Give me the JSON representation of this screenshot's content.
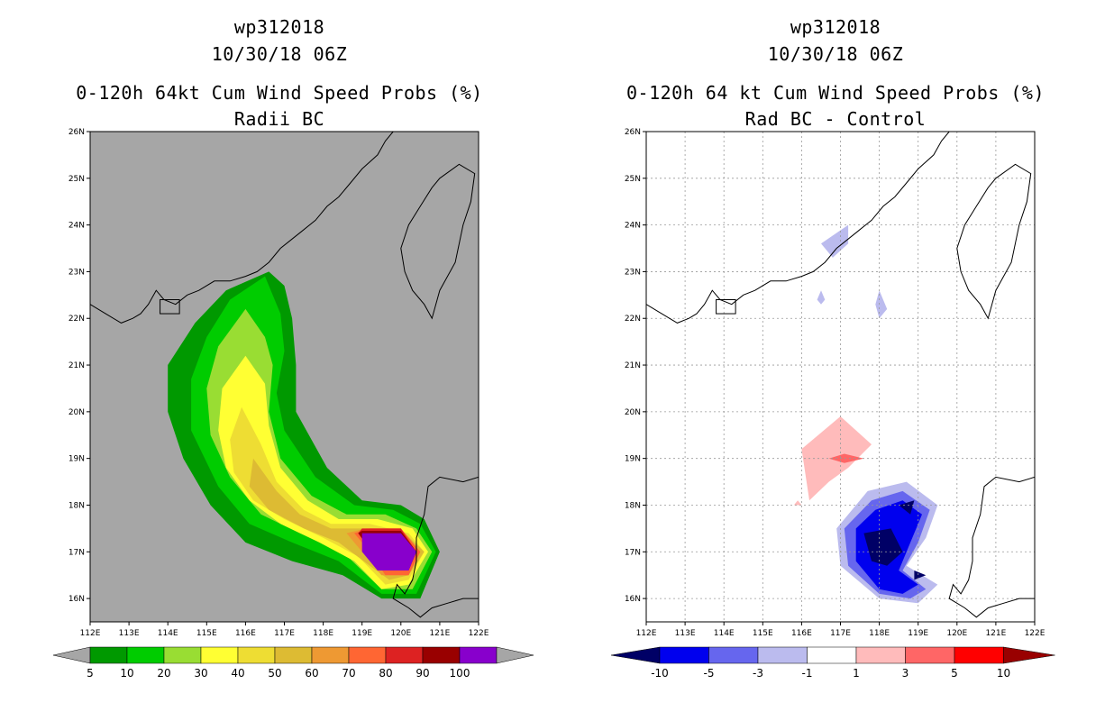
{
  "chart_data": [
    {
      "type": "heatmap",
      "title": [
        "wp312018",
        "10/30/18 06Z",
        "0-120h 64kt Cum Wind Speed Probs (%)",
        "Radii BC"
      ],
      "x_ticks": [
        "112E",
        "113E",
        "114E",
        "115E",
        "116E",
        "117E",
        "118E",
        "119E",
        "120E",
        "121E",
        "122E"
      ],
      "y_ticks": [
        "16N",
        "17N",
        "18N",
        "19N",
        "20N",
        "21N",
        "22N",
        "23N",
        "24N",
        "25N",
        "26N"
      ],
      "xlim": [
        112,
        122
      ],
      "ylim": [
        15.5,
        26
      ],
      "grid": false,
      "legend": {
        "position": "bottom",
        "labels": [
          "5",
          "10",
          "20",
          "30",
          "40",
          "50",
          "60",
          "70",
          "80",
          "90",
          "100"
        ],
        "colors": [
          "#009900",
          "#00cc00",
          "#99dd33",
          "#ffff33",
          "#eedd33",
          "#ddbb33",
          "#ee9933",
          "#ff6633",
          "#dd2222",
          "#990000",
          "#8800cc"
        ]
      },
      "contours": [
        {
          "level": 5,
          "color": "#009900",
          "points": [
            [
              116.6,
              23.0
            ],
            [
              115.5,
              22.6
            ],
            [
              114.7,
              21.9
            ],
            [
              114.0,
              21.0
            ],
            [
              114.0,
              20.0
            ],
            [
              114.4,
              19.0
            ],
            [
              115.1,
              18.0
            ],
            [
              116.0,
              17.2
            ],
            [
              117.2,
              16.8
            ],
            [
              118.5,
              16.5
            ],
            [
              119.5,
              16.0
            ],
            [
              120.5,
              16.0
            ],
            [
              121.0,
              17.0
            ],
            [
              120.6,
              17.7
            ],
            [
              120.0,
              18.0
            ],
            [
              119.0,
              18.1
            ],
            [
              118.1,
              18.8
            ],
            [
              117.3,
              20.0
            ],
            [
              117.3,
              21.0
            ],
            [
              117.2,
              22.0
            ],
            [
              117.0,
              22.7
            ]
          ]
        },
        {
          "level": 10,
          "color": "#00cc00",
          "points": [
            [
              116.5,
              22.9
            ],
            [
              115.6,
              22.4
            ],
            [
              115.0,
              21.6
            ],
            [
              114.6,
              20.7
            ],
            [
              114.6,
              19.6
            ],
            [
              115.3,
              18.4
            ],
            [
              116.1,
              17.6
            ],
            [
              117.2,
              17.2
            ],
            [
              118.4,
              16.8
            ],
            [
              119.5,
              16.1
            ],
            [
              120.4,
              16.1
            ],
            [
              120.9,
              17.0
            ],
            [
              120.5,
              17.6
            ],
            [
              119.8,
              17.9
            ],
            [
              118.8,
              18.0
            ],
            [
              117.8,
              18.6
            ],
            [
              117.0,
              19.6
            ],
            [
              116.8,
              20.4
            ],
            [
              117.0,
              21.3
            ],
            [
              116.9,
              22.1
            ]
          ]
        },
        {
          "level": 20,
          "color": "#99dd33",
          "points": [
            [
              116.0,
              22.2
            ],
            [
              115.3,
              21.4
            ],
            [
              115.0,
              20.5
            ],
            [
              115.1,
              19.5
            ],
            [
              115.6,
              18.6
            ],
            [
              116.4,
              17.8
            ],
            [
              117.4,
              17.4
            ],
            [
              118.5,
              17.0
            ],
            [
              119.5,
              16.2
            ],
            [
              120.3,
              16.2
            ],
            [
              120.8,
              17.0
            ],
            [
              120.4,
              17.5
            ],
            [
              119.6,
              17.8
            ],
            [
              118.6,
              17.8
            ],
            [
              117.7,
              18.2
            ],
            [
              116.9,
              19.0
            ],
            [
              116.6,
              20.0
            ],
            [
              116.7,
              21.0
            ],
            [
              116.5,
              21.6
            ]
          ]
        },
        {
          "level": 30,
          "color": "#ffff33",
          "points": [
            [
              116.0,
              21.2
            ],
            [
              115.4,
              20.5
            ],
            [
              115.3,
              19.6
            ],
            [
              115.5,
              18.8
            ],
            [
              116.1,
              18.1
            ],
            [
              116.9,
              17.6
            ],
            [
              117.9,
              17.2
            ],
            [
              118.8,
              16.8
            ],
            [
              119.5,
              16.2
            ],
            [
              120.2,
              16.3
            ],
            [
              120.7,
              17.0
            ],
            [
              120.3,
              17.5
            ],
            [
              119.4,
              17.7
            ],
            [
              118.4,
              17.7
            ],
            [
              117.6,
              18.1
            ],
            [
              116.9,
              18.8
            ],
            [
              116.6,
              19.7
            ],
            [
              116.5,
              20.6
            ]
          ]
        },
        {
          "level": 40,
          "color": "#eedd33",
          "points": [
            [
              115.9,
              20.1
            ],
            [
              115.6,
              19.4
            ],
            [
              115.7,
              18.7
            ],
            [
              116.2,
              18.1
            ],
            [
              117.0,
              17.7
            ],
            [
              118.0,
              17.3
            ],
            [
              118.9,
              16.9
            ],
            [
              119.6,
              16.3
            ],
            [
              120.2,
              16.4
            ],
            [
              120.6,
              17.0
            ],
            [
              120.2,
              17.4
            ],
            [
              119.2,
              17.6
            ],
            [
              118.2,
              17.6
            ],
            [
              117.5,
              17.9
            ],
            [
              116.8,
              18.5
            ],
            [
              116.4,
              19.3
            ]
          ]
        },
        {
          "level": 50,
          "color": "#ddbb33",
          "points": [
            [
              116.2,
              19.0
            ],
            [
              116.1,
              18.4
            ],
            [
              116.6,
              17.9
            ],
            [
              117.5,
              17.5
            ],
            [
              118.4,
              17.2
            ],
            [
              119.2,
              16.7
            ],
            [
              119.7,
              16.4
            ],
            [
              120.2,
              16.5
            ],
            [
              120.6,
              17.0
            ],
            [
              120.1,
              17.4
            ],
            [
              119.0,
              17.5
            ],
            [
              118.2,
              17.5
            ],
            [
              117.4,
              17.8
            ],
            [
              116.8,
              18.3
            ]
          ]
        },
        {
          "level": 60,
          "color": "#ee9933",
          "points": [
            [
              118.6,
              17.4
            ],
            [
              119.0,
              17.0
            ],
            [
              119.5,
              16.5
            ],
            [
              120.2,
              16.5
            ],
            [
              120.5,
              17.0
            ],
            [
              120.0,
              17.5
            ],
            [
              119.1,
              17.5
            ]
          ]
        },
        {
          "level": 70,
          "color": "#ff6633",
          "points": [
            [
              118.8,
              17.4
            ],
            [
              119.2,
              17.0
            ],
            [
              119.6,
              16.5
            ],
            [
              120.2,
              16.5
            ],
            [
              120.5,
              17.0
            ],
            [
              120.0,
              17.5
            ],
            [
              119.2,
              17.5
            ]
          ]
        },
        {
          "level": 80,
          "color": "#dd2222",
          "points": [
            [
              118.9,
              17.4
            ],
            [
              119.6,
              16.6
            ],
            [
              120.2,
              16.6
            ],
            [
              120.4,
              17.0
            ],
            [
              120.0,
              17.5
            ],
            [
              119.0,
              17.5
            ]
          ]
        },
        {
          "level": 90,
          "color": "#990000",
          "points": [
            [
              118.9,
              17.4
            ],
            [
              119.6,
              16.6
            ],
            [
              120.2,
              16.6
            ],
            [
              120.4,
              17.0
            ],
            [
              120.0,
              17.45
            ],
            [
              119.0,
              17.45
            ]
          ]
        },
        {
          "level": 100,
          "color": "#8800cc",
          "points": [
            [
              119.0,
              17.4
            ],
            [
              119.0,
              17.0
            ],
            [
              119.4,
              16.6
            ],
            [
              120.2,
              16.6
            ],
            [
              120.4,
              17.0
            ],
            [
              120.0,
              17.4
            ]
          ]
        }
      ]
    },
    {
      "type": "heatmap",
      "title": [
        "wp312018",
        "10/30/18 06Z",
        "0-120h 64 kt Cum Wind Speed Probs (%)",
        "Rad BC - Control"
      ],
      "x_ticks": [
        "112E",
        "113E",
        "114E",
        "115E",
        "116E",
        "117E",
        "118E",
        "119E",
        "120E",
        "121E",
        "122E"
      ],
      "y_ticks": [
        "16N",
        "17N",
        "18N",
        "19N",
        "20N",
        "21N",
        "22N",
        "23N",
        "24N",
        "25N",
        "26N"
      ],
      "xlim": [
        112,
        122
      ],
      "ylim": [
        15.5,
        26
      ],
      "grid": true,
      "legend": {
        "position": "bottom",
        "labels": [
          "-10",
          "-5",
          "-3",
          "-1",
          "1",
          "3",
          "5",
          "10"
        ],
        "colors": [
          "#000066",
          "#0000ee",
          "#6666ee",
          "#bbbbee",
          "#ffffff",
          "#ffbbbb",
          "#ff6666",
          "#ff0000",
          "#990000"
        ]
      },
      "contours": [
        {
          "level": "-1 to -3",
          "color": "#bbbbee",
          "points": [
            [
              116.5,
              23.6
            ],
            [
              117.2,
              24.0
            ],
            [
              117.2,
              23.6
            ],
            [
              116.8,
              23.3
            ]
          ]
        },
        {
          "level": "-1 to -3",
          "color": "#bbbbee",
          "points": [
            [
              118.0,
              22.6
            ],
            [
              118.2,
              22.2
            ],
            [
              118.0,
              22.0
            ],
            [
              117.9,
              22.3
            ]
          ]
        },
        {
          "level": "-1 to -3",
          "color": "#bbbbee",
          "points": [
            [
              116.5,
              22.6
            ],
            [
              116.6,
              22.4
            ],
            [
              116.5,
              22.3
            ],
            [
              116.4,
              22.4
            ]
          ]
        },
        {
          "level": "-1 to -3",
          "color": "#bbbbee",
          "points": [
            [
              117.7,
              18.3
            ],
            [
              118.7,
              18.5
            ],
            [
              119.5,
              18.0
            ],
            [
              119.2,
              17.3
            ],
            [
              118.7,
              16.7
            ],
            [
              119.5,
              16.3
            ],
            [
              119.0,
              15.9
            ],
            [
              118.0,
              16.0
            ],
            [
              117.0,
              16.7
            ],
            [
              116.9,
              17.5
            ]
          ]
        },
        {
          "level": "-3 to -5",
          "color": "#6666ee",
          "points": [
            [
              117.8,
              18.1
            ],
            [
              118.6,
              18.3
            ],
            [
              119.3,
              17.9
            ],
            [
              119.0,
              17.2
            ],
            [
              118.6,
              16.6
            ],
            [
              119.2,
              16.2
            ],
            [
              118.8,
              16.0
            ],
            [
              118.0,
              16.1
            ],
            [
              117.2,
              16.7
            ],
            [
              117.1,
              17.5
            ]
          ]
        },
        {
          "level": "-5 to -10",
          "color": "#0000ee",
          "points": [
            [
              117.9,
              17.9
            ],
            [
              118.6,
              18.1
            ],
            [
              119.1,
              17.8
            ],
            [
              118.8,
              17.2
            ],
            [
              118.5,
              16.6
            ],
            [
              119.0,
              16.3
            ],
            [
              118.6,
              16.1
            ],
            [
              118.0,
              16.2
            ],
            [
              117.4,
              16.8
            ],
            [
              117.4,
              17.5
            ]
          ]
        },
        {
          "level": "< -10",
          "color": "#000066",
          "points": [
            [
              117.6,
              17.4
            ],
            [
              118.3,
              17.5
            ],
            [
              118.6,
              17.0
            ],
            [
              118.2,
              16.7
            ],
            [
              117.8,
              16.8
            ]
          ]
        },
        {
          "level": "< -10",
          "color": "#000066",
          "points": [
            [
              118.5,
              18.0
            ],
            [
              118.9,
              18.1
            ],
            [
              118.8,
              17.8
            ]
          ]
        },
        {
          "level": "< -10",
          "color": "#000066",
          "points": [
            [
              118.9,
              16.6
            ],
            [
              119.2,
              16.5
            ],
            [
              118.9,
              16.4
            ]
          ]
        },
        {
          "level": "1 to 3",
          "color": "#ffbbbb",
          "points": [
            [
              116.0,
              19.2
            ],
            [
              117.0,
              19.9
            ],
            [
              117.8,
              19.3
            ],
            [
              117.2,
              18.8
            ],
            [
              116.7,
              18.5
            ],
            [
              116.2,
              18.1
            ]
          ]
        },
        {
          "level": "1 to 3",
          "color": "#ffbbbb",
          "points": [
            [
              115.9,
              18.1
            ],
            [
              116.0,
              18.0
            ],
            [
              115.8,
              18.0
            ]
          ]
        },
        {
          "level": "3 to 5",
          "color": "#ff6666",
          "points": [
            [
              116.7,
              19.0
            ],
            [
              117.1,
              19.1
            ],
            [
              117.6,
              19.0
            ],
            [
              117.1,
              18.9
            ]
          ]
        }
      ]
    }
  ]
}
